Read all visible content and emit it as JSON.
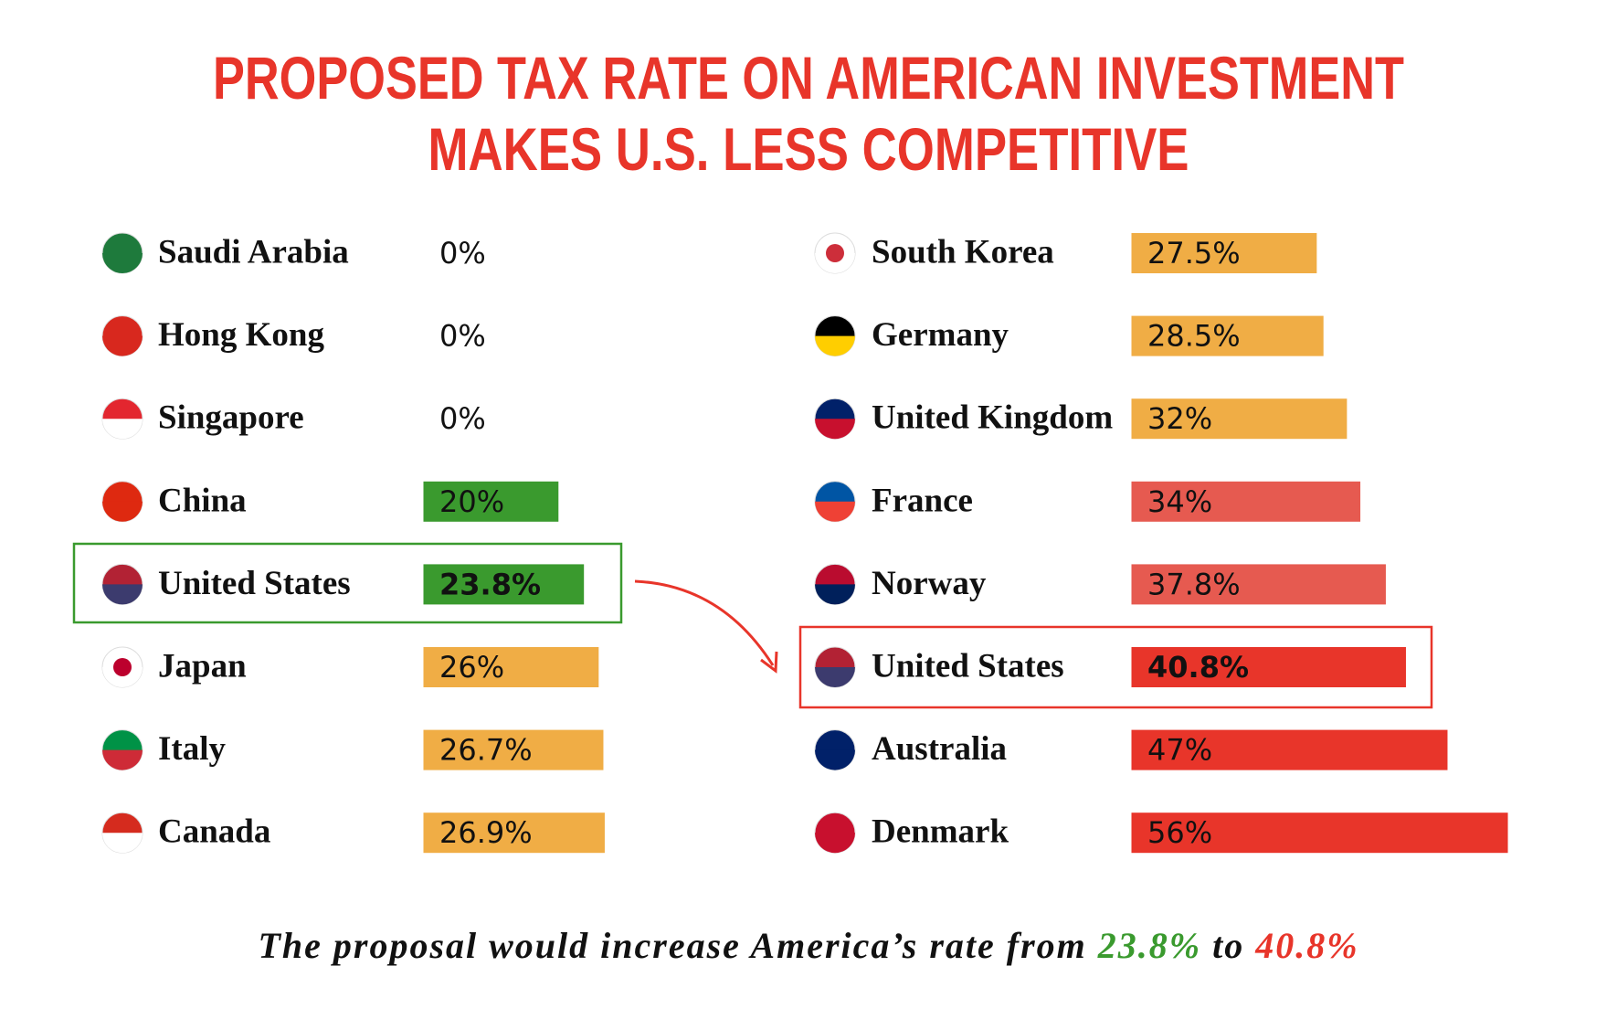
{
  "chart_data": [
    {
      "type": "bar",
      "categories": [
        "Saudi Arabia",
        "Hong Kong",
        "Singapore",
        "China",
        "United States",
        "Japan",
        "Italy",
        "Canada"
      ],
      "values": [
        0,
        0,
        0,
        20,
        23.8,
        26,
        26.7,
        26.9
      ],
      "value_labels": [
        "0%",
        "0%",
        "0%",
        "20%",
        "23.8%",
        "26%",
        "26.7%",
        "26.9%"
      ],
      "colors": [
        "#3a9a2e",
        "#3a9a2e",
        "#3a9a2e",
        "#3a9a2e",
        "#3a9a2e",
        "#f0ad45",
        "#f0ad45",
        "#f0ad45"
      ],
      "highlight": 4,
      "highlight_color": "#3a9a2e"
    },
    {
      "type": "bar",
      "categories": [
        "South Korea",
        "Germany",
        "United Kingdom",
        "France",
        "Norway",
        "United States",
        "Australia",
        "Denmark"
      ],
      "values": [
        27.5,
        28.5,
        32,
        34,
        37.8,
        40.8,
        47,
        56
      ],
      "value_labels": [
        "27.5%",
        "28.5%",
        "32%",
        "34%",
        "37.8%",
        "40.8%",
        "47%",
        "56%"
      ],
      "colors": [
        "#f0ad45",
        "#f0ad45",
        "#f0ad45",
        "#e65a50",
        "#e65a50",
        "#e8352a",
        "#e8352a",
        "#e8352a"
      ],
      "highlight": 5,
      "highlight_color": "#e8352a"
    }
  ],
  "header": {
    "title_line1": "PROPOSED TAX RATE ON AMERICAN INVESTMENT",
    "title_line2": "MAKES U.S. LESS COMPETITIVE"
  },
  "footer": {
    "text": "The proposal would increase America’s rate from",
    "from": "23.8%",
    "to_word": "to",
    "to": "40.8%"
  }
}
